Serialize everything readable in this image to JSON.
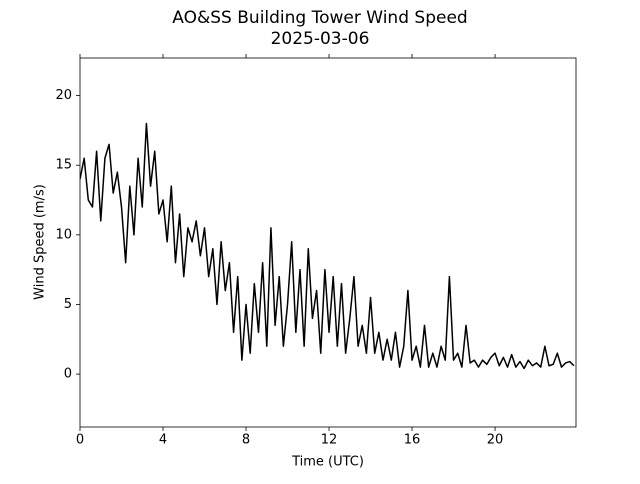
{
  "chart_data": {
    "type": "line",
    "title": "AO&SS Building Tower Wind Speed",
    "subtitle": "2025-03-06",
    "x_label": "Time (UTC)",
    "y_label": "Wind Speed (m/s)",
    "xlim": [
      0,
      23.9
    ],
    "xticks": [
      0,
      4,
      8,
      12,
      16,
      20
    ],
    "ylim": [
      -3.8,
      22.7
    ],
    "yticks": [
      0,
      5,
      10,
      15,
      20
    ],
    "grid": false,
    "series": [
      {
        "name": "Wind Speed",
        "color": "#000000",
        "x": [
          0,
          0.2,
          0.4,
          0.6,
          0.8,
          1,
          1.2,
          1.4,
          1.6,
          1.8,
          2,
          2.2,
          2.4,
          2.6,
          2.8,
          3,
          3.2,
          3.4,
          3.6,
          3.8,
          4,
          4.2,
          4.4,
          4.6,
          4.8,
          5,
          5.2,
          5.4,
          5.6,
          5.8,
          6,
          6.2,
          6.4,
          6.6,
          6.8,
          7,
          7.2,
          7.4,
          7.6,
          7.8,
          8,
          8.2,
          8.4,
          8.6,
          8.8,
          9,
          9.2,
          9.4,
          9.6,
          9.8,
          10,
          10.2,
          10.4,
          10.6,
          10.8,
          11,
          11.2,
          11.4,
          11.6,
          11.8,
          12,
          12.2,
          12.4,
          12.6,
          12.8,
          13,
          13.2,
          13.4,
          13.6,
          13.8,
          14,
          14.2,
          14.4,
          14.6,
          14.8,
          15,
          15.2,
          15.4,
          15.6,
          15.8,
          16,
          16.2,
          16.4,
          16.6,
          16.8,
          17,
          17.2,
          17.4,
          17.6,
          17.8,
          18,
          18.2,
          18.4,
          18.6,
          18.8,
          19,
          19.2,
          19.4,
          19.6,
          19.8,
          20,
          20.2,
          20.4,
          20.6,
          20.8,
          21,
          21.2,
          21.4,
          21.6,
          21.8,
          22,
          22.2,
          22.4,
          22.6,
          22.8,
          23,
          23.2,
          23.4,
          23.6,
          23.8
        ],
        "values": [
          14,
          15.5,
          12.5,
          12,
          16,
          11,
          15.5,
          16.5,
          13,
          14.5,
          12,
          8,
          13.5,
          10,
          15.5,
          12,
          18,
          13.5,
          16,
          11.5,
          12.5,
          9.5,
          13.5,
          8,
          11.5,
          7,
          10.5,
          9.5,
          11,
          8.5,
          10.5,
          7,
          9,
          5,
          9.5,
          6,
          8,
          3,
          7,
          1,
          5,
          1.5,
          6.5,
          3,
          8,
          2,
          10.5,
          3.5,
          7,
          2,
          5,
          9.5,
          3,
          7.5,
          2,
          9,
          4,
          6,
          1.5,
          7.5,
          3,
          7,
          2,
          6.5,
          1.5,
          4,
          7,
          2,
          3.5,
          1.5,
          5.5,
          1.5,
          3,
          1,
          2.5,
          1,
          3,
          0.5,
          2,
          6,
          1,
          2,
          0.5,
          3.5,
          0.5,
          1.5,
          0.5,
          2,
          1,
          7,
          1,
          1.5,
          0.5,
          3.5,
          0.8,
          1,
          0.5,
          1,
          0.7,
          1.2,
          1.5,
          0.6,
          1.2,
          0.5,
          1.4,
          0.5,
          0.9,
          0.4,
          1,
          0.6,
          0.8,
          0.5,
          2,
          0.6,
          0.7,
          1.5,
          0.5,
          0.8,
          0.9,
          0.6
        ]
      }
    ]
  }
}
